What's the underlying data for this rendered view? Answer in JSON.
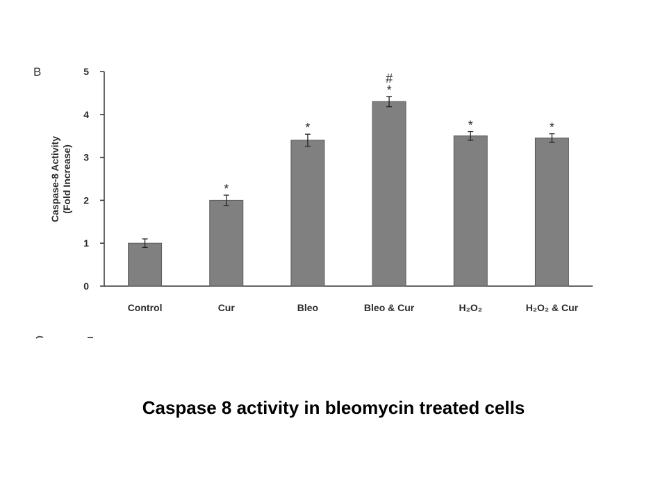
{
  "caption": "Caspase 8 activity in bleomycin treated cells",
  "colors": {
    "bar": "#808080",
    "axis": "#333333",
    "text": "#2a2a2a"
  },
  "chart_data": {
    "type": "bar",
    "panel_label": "B",
    "ylabel_line1": "Caspase-8 Activity",
    "ylabel_line2": "(Fold Increase)",
    "ylim": [
      0,
      5
    ],
    "yticks": [
      "0",
      "1",
      "2",
      "3",
      "4",
      "5"
    ],
    "categories": [
      "Control",
      "Cur",
      "Bleo",
      "Bleo & Cur",
      "H₂O₂",
      "H₂O₂ & Cur"
    ],
    "values": [
      1.0,
      2.0,
      3.4,
      4.3,
      3.5,
      3.45
    ],
    "errors": [
      0.1,
      0.12,
      0.14,
      0.12,
      0.1,
      0.1
    ],
    "markers": [
      "",
      "*",
      "*",
      "*",
      "*",
      "*"
    ],
    "extra_markers": [
      "",
      "",
      "",
      "#",
      "",
      ""
    ]
  }
}
